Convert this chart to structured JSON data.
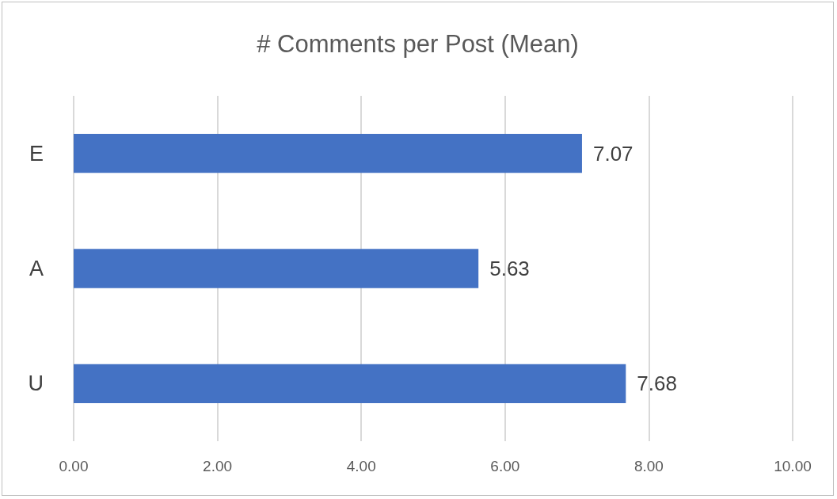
{
  "chart_data": {
    "type": "bar",
    "orientation": "horizontal",
    "title": "# Comments per Post (Mean)",
    "categories": [
      "E",
      "A",
      "U"
    ],
    "values": [
      7.07,
      5.63,
      7.68
    ],
    "color": "#4472c4",
    "xlim": [
      0,
      10
    ],
    "xticks": [
      {
        "value": 0,
        "label": "0.00"
      },
      {
        "value": 2,
        "label": "2.00"
      },
      {
        "value": 4,
        "label": "4.00"
      },
      {
        "value": 6,
        "label": "6.00"
      },
      {
        "value": 8,
        "label": "8.00"
      },
      {
        "value": 10,
        "label": "10.00"
      }
    ],
    "grid": "x",
    "data_labels": true
  }
}
